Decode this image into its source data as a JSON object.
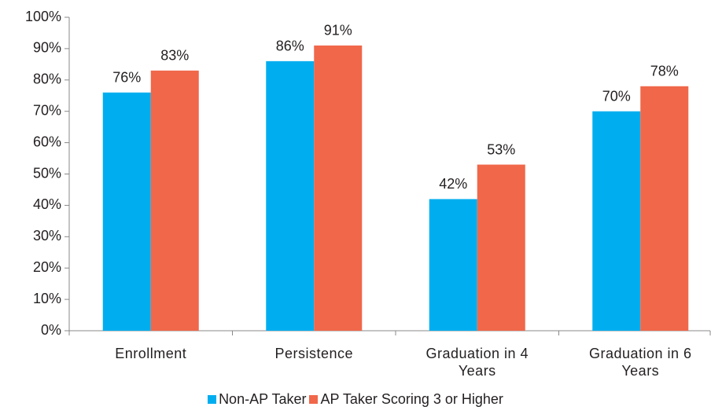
{
  "chart_data": {
    "type": "bar",
    "categories": [
      "Enrollment",
      "Persistence",
      "Graduation in 4 Years",
      "Graduation in 6 Years"
    ],
    "series": [
      {
        "name": "Non-AP Taker",
        "color": "#00aeef",
        "values": [
          76,
          86,
          42,
          70
        ],
        "value_labels": [
          "76%",
          "86%",
          "42%",
          "70%"
        ]
      },
      {
        "name": "AP Taker Scoring 3 or Higher",
        "color": "#f0674a",
        "values": [
          83,
          91,
          53,
          78
        ],
        "value_labels": [
          "83%",
          "91%",
          "53%",
          "78%"
        ]
      }
    ],
    "ylim": [
      0,
      100
    ],
    "yticks": [
      {
        "value": 0,
        "label": "0%"
      },
      {
        "value": 10,
        "label": "10%"
      },
      {
        "value": 20,
        "label": "20%"
      },
      {
        "value": 30,
        "label": "30%"
      },
      {
        "value": 40,
        "label": "40%"
      },
      {
        "value": 50,
        "label": "50%"
      },
      {
        "value": 60,
        "label": "60%"
      },
      {
        "value": 70,
        "label": "70%"
      },
      {
        "value": 80,
        "label": "80%"
      },
      {
        "value": 90,
        "label": "90%"
      },
      {
        "value": 100,
        "label": "100%"
      }
    ],
    "grid": false,
    "legend": "bottom"
  }
}
